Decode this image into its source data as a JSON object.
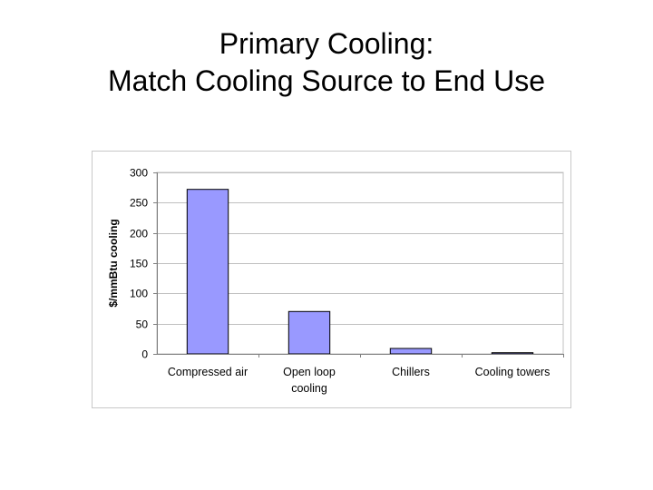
{
  "slide": {
    "title_line1": "Primary Cooling:",
    "title_line2": "Match Cooling Source to End Use"
  },
  "chart_data": {
    "type": "bar",
    "title": "",
    "xlabel": "",
    "ylabel": "$/mmBtu cooling",
    "categories": [
      [
        "Compressed air"
      ],
      [
        "Open loop",
        "cooling"
      ],
      [
        "Chillers"
      ],
      [
        "Cooling towers"
      ]
    ],
    "values": [
      272,
      70,
      9,
      2
    ],
    "ylim": [
      0,
      300
    ],
    "yticks": [
      0,
      50,
      100,
      150,
      200,
      250,
      300
    ],
    "grid": true,
    "legend": "none",
    "bar_color": "#9999ff",
    "bar_edge_color": "#000000",
    "grid_color": "#c0c0c0"
  }
}
